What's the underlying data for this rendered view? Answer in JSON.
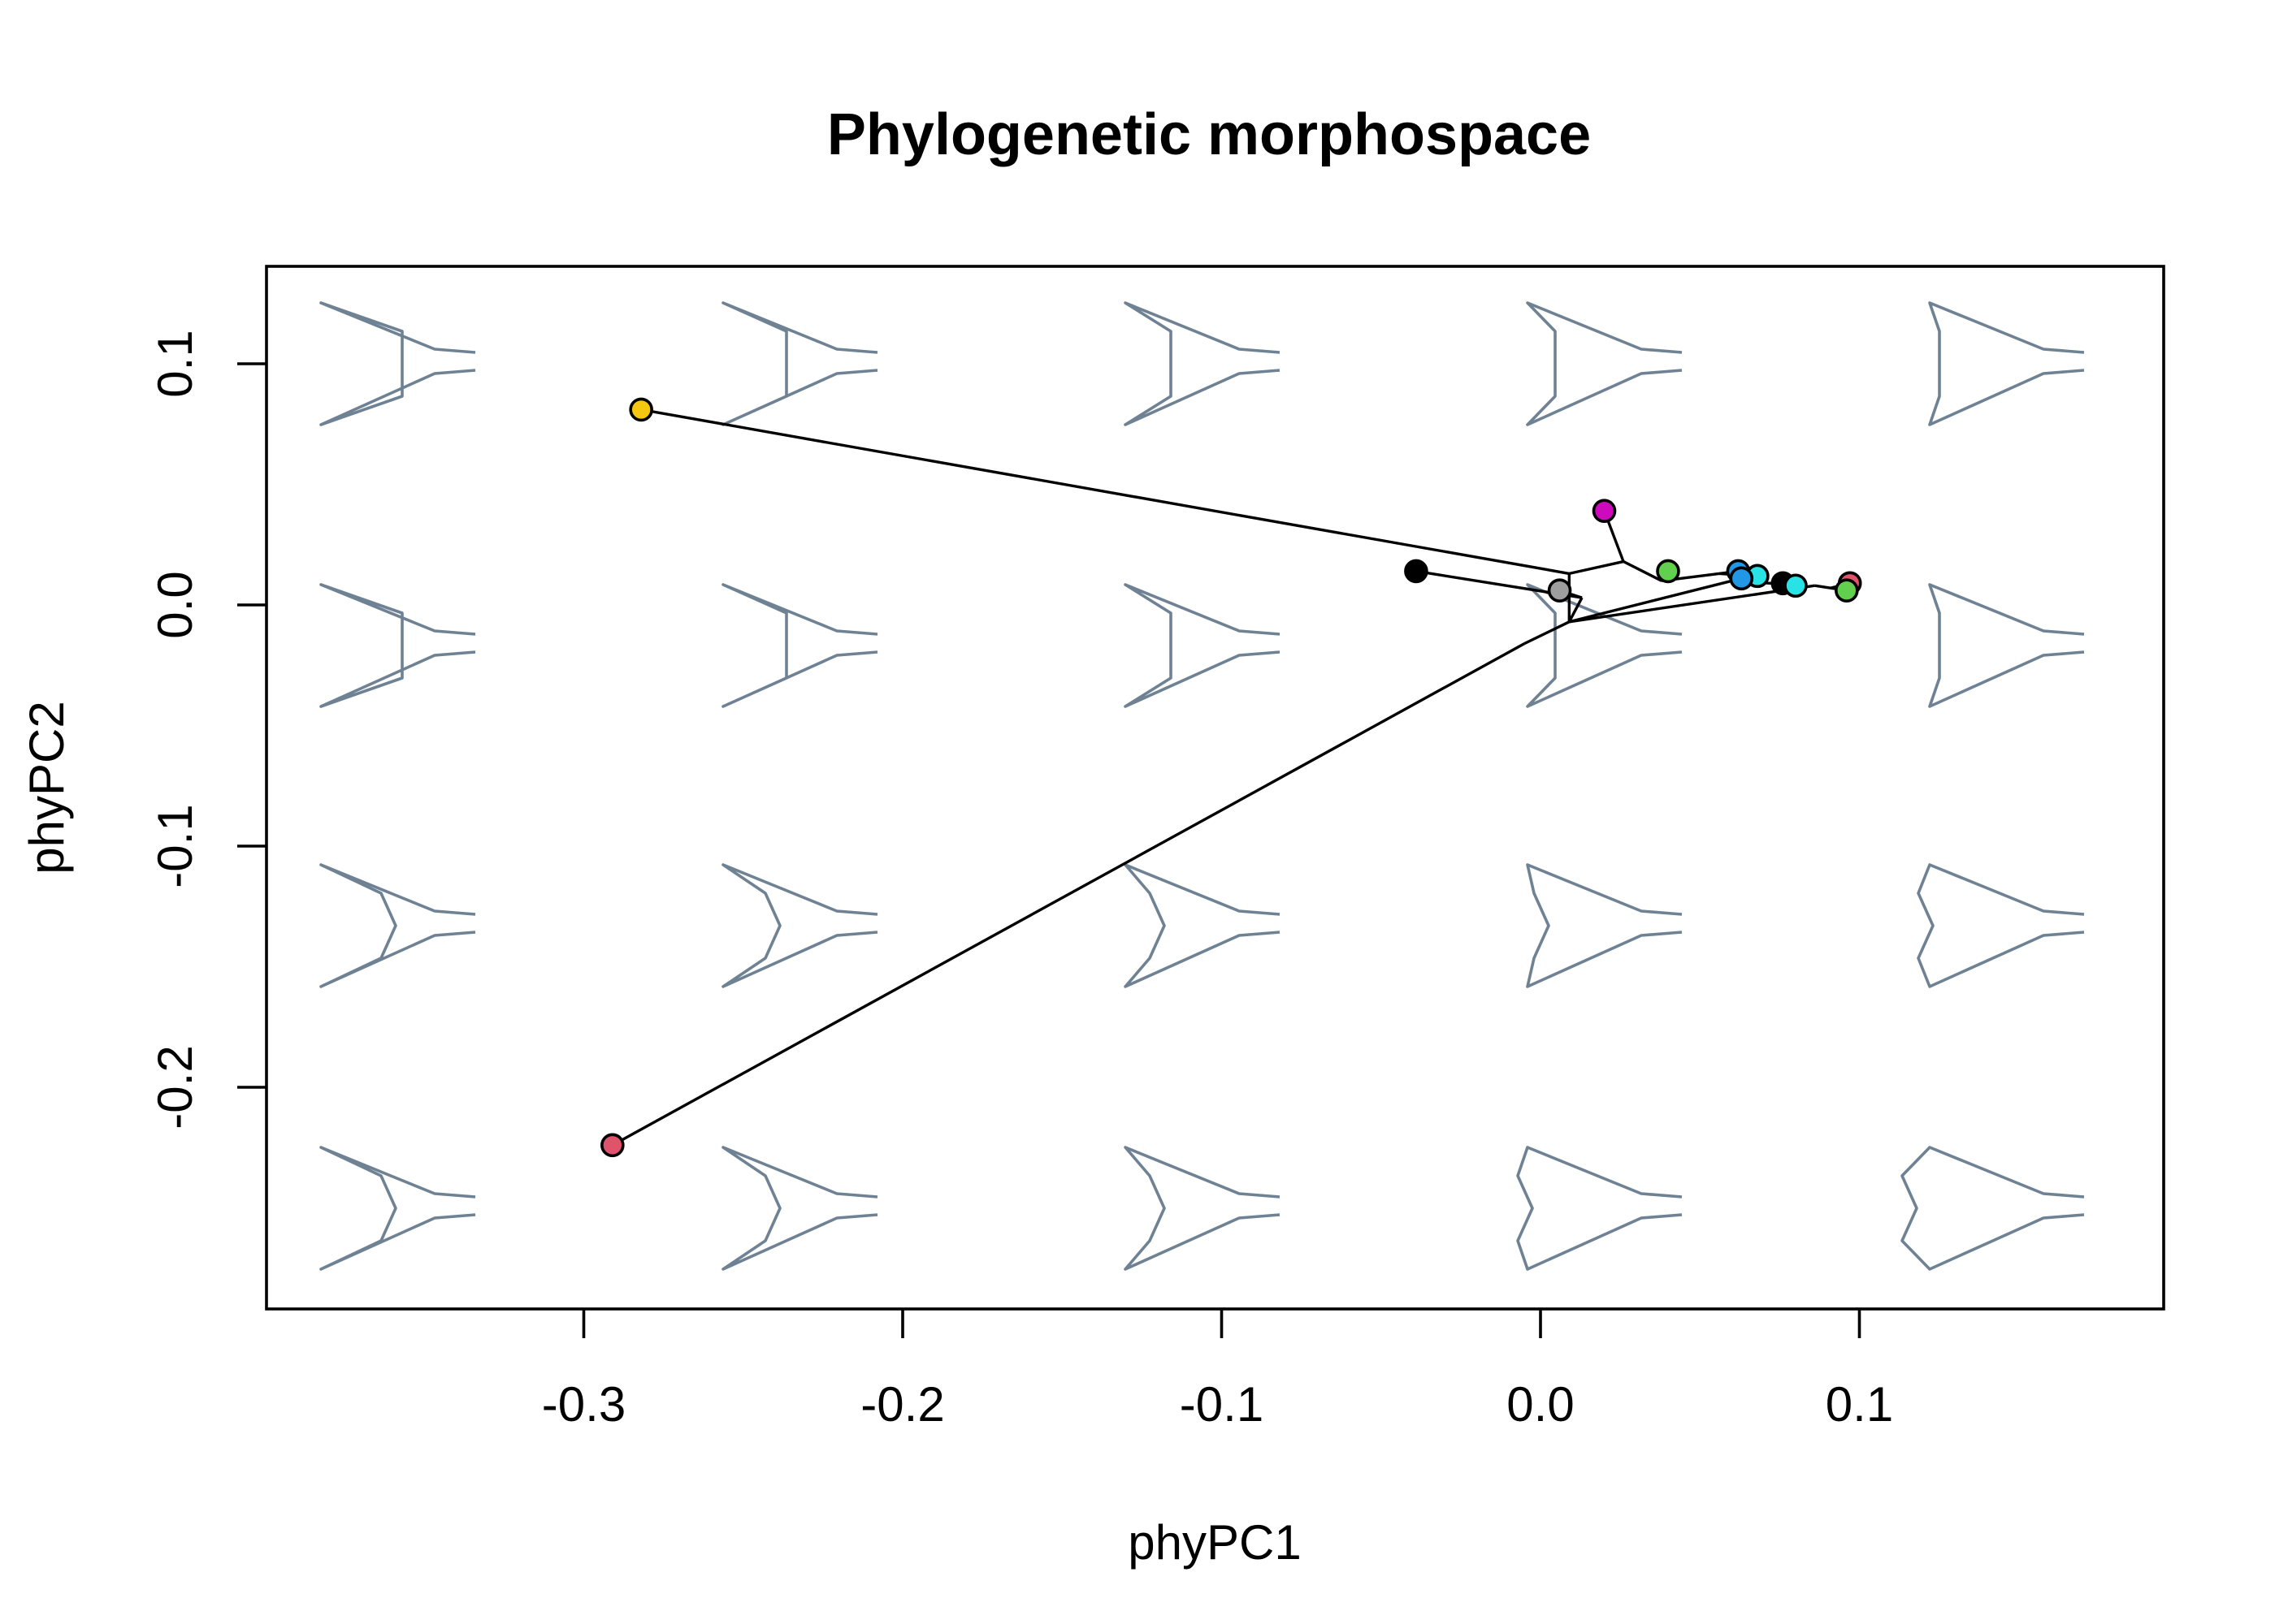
{
  "colors": {
    "shape_outline": "#6F8294",
    "axis": "#000000"
  },
  "chart_data": {
    "type": "scatter",
    "title": "Phylogenetic morphospace",
    "xlabel": "phyPC1",
    "ylabel": "phyPC2",
    "xlim": [
      -0.38,
      0.195
    ],
    "ylim": [
      -0.29,
      0.14
    ],
    "xticks": [
      -0.3,
      -0.2,
      -0.1,
      0.0,
      0.1
    ],
    "xtick_labels": [
      "-0.3",
      "-0.2",
      "-0.1",
      "0.0",
      "0.1"
    ],
    "yticks": [
      -0.2,
      -0.1,
      0.0,
      0.1
    ],
    "ytick_labels": [
      "-0.2",
      "-0.1",
      "0.0",
      "0.1"
    ],
    "grid": false,
    "legend": "none",
    "tips": [
      {
        "x": -0.282,
        "y": 0.081,
        "color": "#F5C710"
      },
      {
        "x": -0.291,
        "y": -0.224,
        "color": "#DF536B"
      },
      {
        "x": 0.02,
        "y": 0.039,
        "color": "#CD0BBC"
      },
      {
        "x": -0.039,
        "y": 0.014,
        "color": "#000000"
      },
      {
        "x": 0.006,
        "y": 0.006,
        "color": "#9E9E9E"
      },
      {
        "x": 0.04,
        "y": 0.014,
        "color": "#61D04F"
      },
      {
        "x": 0.062,
        "y": 0.014,
        "color": "#2297E6"
      },
      {
        "x": 0.068,
        "y": 0.012,
        "color": "#28E2E5"
      },
      {
        "x": 0.063,
        "y": 0.011,
        "color": "#2297E6"
      },
      {
        "x": 0.076,
        "y": 0.009,
        "color": "#000000"
      },
      {
        "x": 0.08,
        "y": 0.008,
        "color": "#28E2E5"
      },
      {
        "x": 0.097,
        "y": 0.009,
        "color": "#DF536B"
      },
      {
        "x": 0.096,
        "y": 0.006,
        "color": "#61D04F"
      }
    ],
    "nodes": [
      {
        "x": -0.005,
        "y": -0.016
      },
      {
        "x": 0.009,
        "y": -0.007
      },
      {
        "x": 0.009,
        "y": 0.013
      },
      {
        "x": 0.026,
        "y": 0.018
      },
      {
        "x": 0.013,
        "y": 0.003
      },
      {
        "x": 0.038,
        "y": 0.01
      },
      {
        "x": 0.056,
        "y": 0.013
      },
      {
        "x": 0.06,
        "y": 0.01
      },
      {
        "x": 0.072,
        "y": 0.009
      },
      {
        "x": 0.086,
        "y": 0.008
      },
      {
        "x": 0.091,
        "y": 0.007
      }
    ],
    "edges": [
      [
        {
          "node": 0
        },
        {
          "tip": 1
        }
      ],
      [
        {
          "node": 0
        },
        {
          "node": 1
        }
      ],
      [
        {
          "node": 1
        },
        {
          "node": 2
        }
      ],
      [
        {
          "node": 2
        },
        {
          "tip": 0
        }
      ],
      [
        {
          "node": 2
        },
        {
          "node": 3
        }
      ],
      [
        {
          "node": 3
        },
        {
          "tip": 2
        }
      ],
      [
        {
          "node": 3
        },
        {
          "node": 5
        }
      ],
      [
        {
          "node": 5
        },
        {
          "tip": 5
        }
      ],
      [
        {
          "node": 5
        },
        {
          "node": 6
        }
      ],
      [
        {
          "node": 6
        },
        {
          "tip": 6
        }
      ],
      [
        {
          "node": 6
        },
        {
          "tip": 7
        }
      ],
      [
        {
          "node": 1
        },
        {
          "node": 4
        }
      ],
      [
        {
          "node": 4
        },
        {
          "tip": 3
        }
      ],
      [
        {
          "node": 4
        },
        {
          "tip": 4
        }
      ],
      [
        {
          "node": 1
        },
        {
          "node": 7
        }
      ],
      [
        {
          "node": 7
        },
        {
          "tip": 8
        }
      ],
      [
        {
          "node": 7
        },
        {
          "node": 8
        }
      ],
      [
        {
          "node": 8
        },
        {
          "tip": 9
        }
      ],
      [
        {
          "node": 8
        },
        {
          "tip": 10
        }
      ],
      [
        {
          "node": 1
        },
        {
          "node": 9
        }
      ],
      [
        {
          "node": 9
        },
        {
          "node": 10
        }
      ],
      [
        {
          "node": 10
        },
        {
          "tip": 11
        }
      ],
      [
        {
          "node": 10
        },
        {
          "tip": 12
        }
      ]
    ],
    "backdrop_shape_grid": {
      "description_values": "grid of morphospace shape outlines behind points",
      "columns": 5,
      "rows": 4
    }
  }
}
